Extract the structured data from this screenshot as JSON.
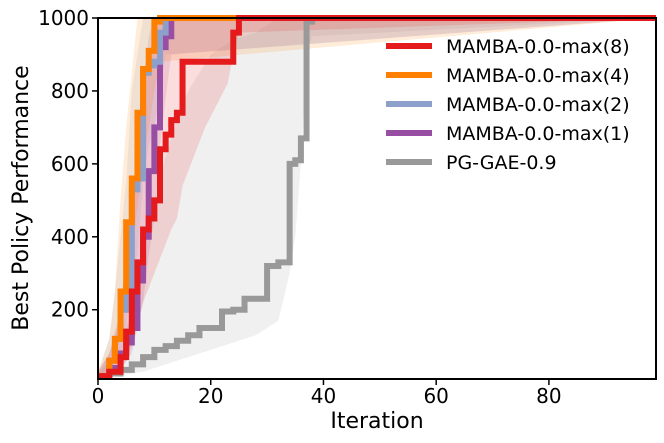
{
  "chart_data": {
    "type": "line",
    "title": "",
    "xlabel": "Iteration",
    "ylabel": "Best Policy Performance",
    "xlim": [
      0,
      99
    ],
    "ylim": [
      10,
      1000
    ],
    "xticks": [
      0,
      20,
      40,
      60,
      80
    ],
    "yticks": [
      200,
      400,
      600,
      800,
      1000
    ],
    "grid": false,
    "legend_position": "top-right",
    "series": [
      {
        "name": "MAMBA-0.0-max(8)",
        "color": "#e41a1c",
        "x": [
          0,
          2,
          4,
          5,
          6,
          7,
          8,
          9,
          10,
          11,
          12,
          13,
          14,
          15,
          17,
          19,
          21,
          23,
          24,
          25,
          99
        ],
        "y": [
          18,
          30,
          70,
          140,
          250,
          330,
          420,
          450,
          500,
          640,
          680,
          720,
          740,
          880,
          880,
          880,
          880,
          880,
          960,
          1000,
          1000
        ],
        "band_upper": [
          30,
          80,
          200,
          350,
          500,
          620,
          800,
          900,
          950,
          1000,
          1000,
          1000,
          1000,
          1000,
          1000,
          1000,
          1000,
          1000,
          1000,
          1000,
          1000
        ],
        "band_lower": [
          12,
          15,
          30,
          60,
          100,
          160,
          220,
          260,
          300,
          340,
          380,
          420,
          450,
          540,
          620,
          700,
          760,
          820,
          900,
          960,
          1000
        ]
      },
      {
        "name": "MAMBA-0.0-max(4)",
        "color": "#ff7f00",
        "x": [
          0,
          2,
          3,
          4,
          5,
          6,
          7,
          8,
          9,
          10,
          11,
          99
        ],
        "y": [
          18,
          60,
          120,
          250,
          440,
          560,
          740,
          860,
          910,
          990,
          1000,
          1000
        ],
        "band_upper": [
          30,
          120,
          250,
          500,
          700,
          850,
          1000,
          1000,
          1000,
          1000,
          1000,
          1000
        ],
        "band_lower": [
          12,
          30,
          60,
          120,
          250,
          350,
          480,
          600,
          700,
          800,
          880,
          1000
        ]
      },
      {
        "name": "MAMBA-0.0-max(2)",
        "color": "#8da0cb",
        "x": [
          0,
          2,
          3,
          4,
          5,
          6,
          7,
          8,
          9,
          10,
          11,
          12,
          99
        ],
        "y": [
          18,
          60,
          120,
          200,
          260,
          530,
          560,
          850,
          870,
          880,
          960,
          1000,
          1000
        ],
        "band_upper": [
          30,
          120,
          250,
          400,
          550,
          800,
          900,
          1000,
          1000,
          1000,
          1000,
          1000,
          1000
        ],
        "band_lower": [
          12,
          30,
          60,
          100,
          150,
          300,
          350,
          550,
          650,
          700,
          800,
          900,
          1000
        ]
      },
      {
        "name": "MAMBA-0.0-max(1)",
        "color": "#984ea3",
        "x": [
          0,
          2,
          4,
          5,
          6,
          7,
          8,
          9,
          10,
          11,
          12,
          13,
          99
        ],
        "y": [
          18,
          40,
          80,
          110,
          150,
          280,
          400,
          580,
          700,
          920,
          950,
          1000,
          1000
        ],
        "band_upper": [
          30,
          80,
          180,
          300,
          450,
          650,
          800,
          950,
          1000,
          1000,
          1000,
          1000,
          1000
        ],
        "band_lower": [
          12,
          20,
          40,
          60,
          80,
          150,
          220,
          350,
          450,
          650,
          780,
          900,
          1000
        ]
      },
      {
        "name": "PG-GAE-0.9",
        "color": "#999999",
        "x": [
          0,
          2,
          4,
          6,
          8,
          10,
          12,
          14,
          16,
          18,
          20,
          22,
          24,
          26,
          28,
          30,
          32,
          34,
          35,
          36,
          37,
          38,
          99
        ],
        "y": [
          18,
          25,
          35,
          50,
          70,
          90,
          100,
          115,
          130,
          150,
          150,
          195,
          200,
          230,
          230,
          320,
          330,
          600,
          610,
          670,
          990,
          1000,
          1000
        ],
        "band_upper": [
          25,
          60,
          100,
          200,
          350,
          500,
          620,
          720,
          800,
          850,
          900,
          920,
          940,
          950,
          960,
          980,
          1000,
          1000,
          1000,
          1000,
          1000,
          1000,
          1000
        ],
        "band_lower": [
          12,
          15,
          20,
          25,
          30,
          40,
          50,
          60,
          70,
          80,
          90,
          100,
          110,
          120,
          130,
          150,
          170,
          300,
          400,
          600,
          900,
          950,
          1000
        ]
      }
    ]
  }
}
